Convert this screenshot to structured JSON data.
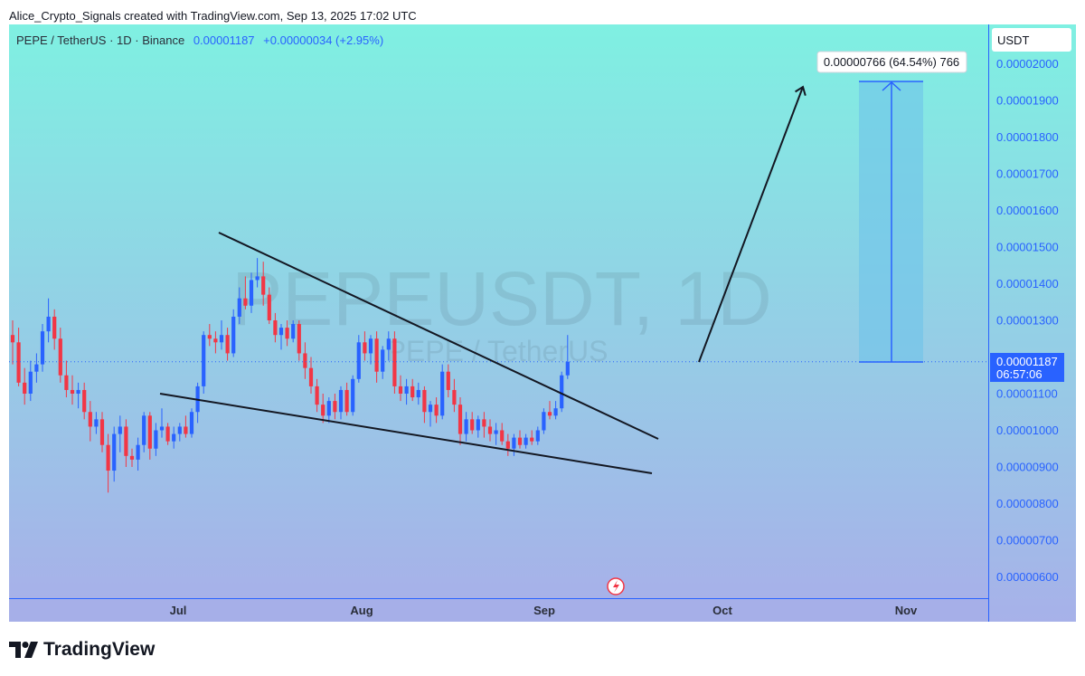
{
  "header": {
    "attribution": "Alice_Crypto_Signals created with TradingView.com, Sep 13, 2025 17:02 UTC"
  },
  "legend": {
    "symbol": "PEPE / TetherUS · 1D · Binance",
    "last_price": "0.00001187",
    "change": "+0.00000034 (+2.95%)"
  },
  "watermark": {
    "ticker": "PEPEUSDT, 1D",
    "name": "PEPE / TetherUS"
  },
  "price_scale": {
    "currency": "USDT",
    "ticks": [
      "0.00002000",
      "0.00001900",
      "0.00001800",
      "0.00001700",
      "0.00001600",
      "0.00001500",
      "0.00001400",
      "0.00001300",
      "0.00001100",
      "0.00001000",
      "0.00000900",
      "0.00000800",
      "0.00000700",
      "0.00000600"
    ],
    "last_price_tag": "0.00001187",
    "countdown": "06:57:06"
  },
  "projection": {
    "label": "0.00000766 (64.54%) 766"
  },
  "footer": {
    "brand": "TradingView"
  },
  "colors": {
    "up": "#2962ff",
    "down": "#f23645",
    "bg_top": "#7ff0e2",
    "bg_bottom": "#a8b2ea",
    "axis": "#2962ff",
    "projection_fill": "#6ec3ea",
    "projection_line": "#2962ff"
  },
  "chart_data": {
    "type": "candlestick",
    "unit": "USDT",
    "ylim": [
      5.7e-06,
      2.09e-05
    ],
    "x_ticks": [
      "Jul",
      "Aug",
      "Sep",
      "Oct",
      "Nov"
    ],
    "last_price": 1.187e-05,
    "candles": [
      {
        "o": 12.6,
        "h": 13.0,
        "l": 11.8,
        "c": 12.4
      },
      {
        "o": 12.4,
        "h": 12.8,
        "l": 11.2,
        "c": 11.3
      },
      {
        "o": 11.3,
        "h": 11.7,
        "l": 10.7,
        "c": 11.0
      },
      {
        "o": 11.0,
        "h": 11.9,
        "l": 10.8,
        "c": 11.6
      },
      {
        "o": 11.6,
        "h": 12.1,
        "l": 11.3,
        "c": 11.8
      },
      {
        "o": 11.8,
        "h": 12.9,
        "l": 11.6,
        "c": 12.7
      },
      {
        "o": 12.7,
        "h": 13.6,
        "l": 12.4,
        "c": 13.1
      },
      {
        "o": 13.1,
        "h": 13.3,
        "l": 12.2,
        "c": 12.5
      },
      {
        "o": 12.5,
        "h": 12.8,
        "l": 11.3,
        "c": 11.5
      },
      {
        "o": 11.5,
        "h": 11.9,
        "l": 10.9,
        "c": 11.1
      },
      {
        "o": 11.1,
        "h": 11.5,
        "l": 10.7,
        "c": 11.0
      },
      {
        "o": 11.0,
        "h": 11.3,
        "l": 10.6,
        "c": 11.1
      },
      {
        "o": 11.1,
        "h": 11.3,
        "l": 10.3,
        "c": 10.5
      },
      {
        "o": 10.5,
        "h": 10.8,
        "l": 9.7,
        "c": 10.1
      },
      {
        "o": 10.1,
        "h": 10.5,
        "l": 9.9,
        "c": 10.3
      },
      {
        "o": 10.3,
        "h": 10.5,
        "l": 9.4,
        "c": 9.6
      },
      {
        "o": 9.6,
        "h": 9.9,
        "l": 8.3,
        "c": 8.9
      },
      {
        "o": 8.9,
        "h": 10.1,
        "l": 8.6,
        "c": 9.9
      },
      {
        "o": 9.9,
        "h": 10.4,
        "l": 9.4,
        "c": 10.1
      },
      {
        "o": 10.1,
        "h": 10.3,
        "l": 9.0,
        "c": 9.3
      },
      {
        "o": 9.3,
        "h": 9.5,
        "l": 9.0,
        "c": 9.2
      },
      {
        "o": 9.2,
        "h": 9.8,
        "l": 8.9,
        "c": 9.6
      },
      {
        "o": 9.6,
        "h": 10.5,
        "l": 9.4,
        "c": 10.4
      },
      {
        "o": 10.4,
        "h": 10.5,
        "l": 9.2,
        "c": 9.5
      },
      {
        "o": 9.5,
        "h": 10.2,
        "l": 9.3,
        "c": 10.0
      },
      {
        "o": 10.0,
        "h": 10.6,
        "l": 9.8,
        "c": 10.1
      },
      {
        "o": 10.1,
        "h": 10.2,
        "l": 9.6,
        "c": 9.7
      },
      {
        "o": 9.7,
        "h": 10.1,
        "l": 9.5,
        "c": 9.9
      },
      {
        "o": 9.9,
        "h": 10.2,
        "l": 9.7,
        "c": 10.1
      },
      {
        "o": 10.1,
        "h": 10.4,
        "l": 9.8,
        "c": 9.9
      },
      {
        "o": 9.9,
        "h": 10.6,
        "l": 9.8,
        "c": 10.5
      },
      {
        "o": 10.5,
        "h": 11.3,
        "l": 10.2,
        "c": 11.2
      },
      {
        "o": 11.2,
        "h": 12.7,
        "l": 11.0,
        "c": 12.6
      },
      {
        "o": 12.6,
        "h": 12.9,
        "l": 12.3,
        "c": 12.5
      },
      {
        "o": 12.5,
        "h": 12.7,
        "l": 12.1,
        "c": 12.4
      },
      {
        "o": 12.4,
        "h": 13.0,
        "l": 12.2,
        "c": 12.6
      },
      {
        "o": 12.6,
        "h": 12.8,
        "l": 11.9,
        "c": 12.1
      },
      {
        "o": 12.1,
        "h": 13.3,
        "l": 12.0,
        "c": 13.1
      },
      {
        "o": 13.1,
        "h": 13.9,
        "l": 12.9,
        "c": 13.6
      },
      {
        "o": 13.6,
        "h": 14.2,
        "l": 13.3,
        "c": 13.4
      },
      {
        "o": 13.4,
        "h": 14.3,
        "l": 13.2,
        "c": 14.1
      },
      {
        "o": 14.1,
        "h": 14.7,
        "l": 13.9,
        "c": 14.2
      },
      {
        "o": 14.2,
        "h": 14.6,
        "l": 13.4,
        "c": 13.7
      },
      {
        "o": 13.7,
        "h": 13.9,
        "l": 12.9,
        "c": 13.0
      },
      {
        "o": 13.0,
        "h": 13.2,
        "l": 12.4,
        "c": 12.6
      },
      {
        "o": 12.6,
        "h": 12.9,
        "l": 12.2,
        "c": 12.8
      },
      {
        "o": 12.8,
        "h": 13.0,
        "l": 12.3,
        "c": 12.5
      },
      {
        "o": 12.5,
        "h": 13.0,
        "l": 12.4,
        "c": 12.9
      },
      {
        "o": 12.9,
        "h": 13.0,
        "l": 11.9,
        "c": 12.1
      },
      {
        "o": 12.1,
        "h": 12.4,
        "l": 11.4,
        "c": 11.7
      },
      {
        "o": 11.7,
        "h": 12.0,
        "l": 11.0,
        "c": 11.2
      },
      {
        "o": 11.2,
        "h": 11.4,
        "l": 10.5,
        "c": 10.7
      },
      {
        "o": 10.7,
        "h": 11.0,
        "l": 10.2,
        "c": 10.4
      },
      {
        "o": 10.4,
        "h": 10.9,
        "l": 10.2,
        "c": 10.8
      },
      {
        "o": 10.8,
        "h": 11.0,
        "l": 10.3,
        "c": 10.5
      },
      {
        "o": 10.5,
        "h": 11.2,
        "l": 10.3,
        "c": 11.1
      },
      {
        "o": 11.1,
        "h": 11.3,
        "l": 10.4,
        "c": 10.5
      },
      {
        "o": 10.5,
        "h": 11.5,
        "l": 10.4,
        "c": 11.4
      },
      {
        "o": 11.4,
        "h": 12.6,
        "l": 11.3,
        "c": 12.4
      },
      {
        "o": 12.4,
        "h": 12.7,
        "l": 11.9,
        "c": 12.1
      },
      {
        "o": 12.1,
        "h": 12.6,
        "l": 11.8,
        "c": 12.5
      },
      {
        "o": 12.5,
        "h": 12.7,
        "l": 11.3,
        "c": 11.6
      },
      {
        "o": 11.6,
        "h": 12.3,
        "l": 11.4,
        "c": 12.2
      },
      {
        "o": 12.2,
        "h": 12.7,
        "l": 11.9,
        "c": 12.5
      },
      {
        "o": 12.5,
        "h": 12.7,
        "l": 11.0,
        "c": 11.2
      },
      {
        "o": 11.2,
        "h": 11.5,
        "l": 10.8,
        "c": 11.0
      },
      {
        "o": 11.0,
        "h": 11.4,
        "l": 10.7,
        "c": 11.2
      },
      {
        "o": 11.2,
        "h": 11.4,
        "l": 10.8,
        "c": 10.9
      },
      {
        "o": 10.9,
        "h": 11.3,
        "l": 10.7,
        "c": 11.1
      },
      {
        "o": 11.1,
        "h": 11.2,
        "l": 10.2,
        "c": 10.5
      },
      {
        "o": 10.5,
        "h": 10.8,
        "l": 10.1,
        "c": 10.7
      },
      {
        "o": 10.7,
        "h": 10.9,
        "l": 10.2,
        "c": 10.4
      },
      {
        "o": 10.4,
        "h": 11.8,
        "l": 10.3,
        "c": 11.6
      },
      {
        "o": 11.6,
        "h": 11.8,
        "l": 10.9,
        "c": 11.1
      },
      {
        "o": 11.1,
        "h": 11.4,
        "l": 10.5,
        "c": 10.7
      },
      {
        "o": 10.7,
        "h": 10.9,
        "l": 9.6,
        "c": 9.9
      },
      {
        "o": 9.9,
        "h": 10.5,
        "l": 9.7,
        "c": 10.3
      },
      {
        "o": 10.3,
        "h": 10.5,
        "l": 9.9,
        "c": 10.0
      },
      {
        "o": 10.0,
        "h": 10.4,
        "l": 9.8,
        "c": 10.3
      },
      {
        "o": 10.3,
        "h": 10.5,
        "l": 9.8,
        "c": 10.1
      },
      {
        "o": 10.1,
        "h": 10.3,
        "l": 9.7,
        "c": 9.9
      },
      {
        "o": 9.9,
        "h": 10.2,
        "l": 9.6,
        "c": 10.0
      },
      {
        "o": 10.0,
        "h": 10.2,
        "l": 9.6,
        "c": 9.7
      },
      {
        "o": 9.7,
        "h": 9.9,
        "l": 9.3,
        "c": 9.5
      },
      {
        "o": 9.5,
        "h": 9.9,
        "l": 9.3,
        "c": 9.8
      },
      {
        "o": 9.8,
        "h": 10.0,
        "l": 9.5,
        "c": 9.6
      },
      {
        "o": 9.6,
        "h": 9.9,
        "l": 9.5,
        "c": 9.8
      },
      {
        "o": 9.8,
        "h": 10.0,
        "l": 9.6,
        "c": 9.7
      },
      {
        "o": 9.7,
        "h": 10.1,
        "l": 9.6,
        "c": 10.0
      },
      {
        "o": 10.0,
        "h": 10.6,
        "l": 9.9,
        "c": 10.5
      },
      {
        "o": 10.5,
        "h": 10.8,
        "l": 10.3,
        "c": 10.4
      },
      {
        "o": 10.4,
        "h": 10.8,
        "l": 10.3,
        "c": 10.6
      },
      {
        "o": 10.6,
        "h": 11.6,
        "l": 10.5,
        "c": 11.5
      },
      {
        "o": 11.5,
        "h": 12.6,
        "l": 11.4,
        "c": 11.87
      }
    ]
  }
}
